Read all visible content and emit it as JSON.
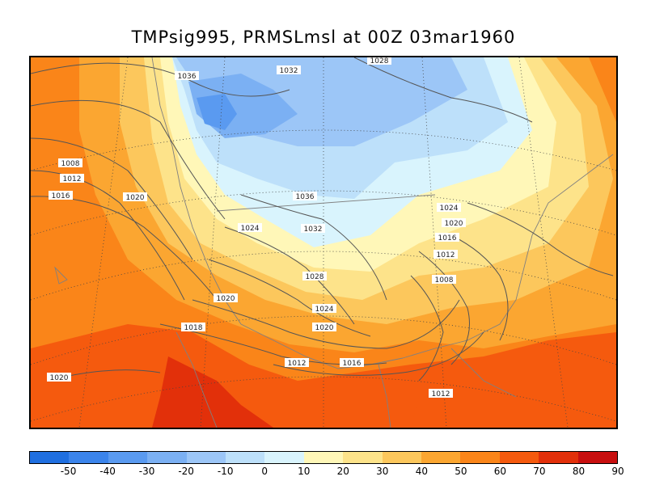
{
  "title": "TMPsig995, PRMSLmsl at 00Z  03mar1960",
  "colors": {
    "scale": [
      "#1f6fe0",
      "#3b84eb",
      "#5a9af0",
      "#7bb0f3",
      "#9cc6f7",
      "#bde0fa",
      "#d9f4fd",
      "#fff7b8",
      "#fde38a",
      "#fcc75c",
      "#fba631",
      "#fa8519",
      "#f55a0e",
      "#e2300a",
      "#c80f0f"
    ],
    "ocean_warm": "#fa8519",
    "contour": "#555555",
    "coast": "#808080"
  },
  "colorbar": {
    "tick_labels": [
      "-50",
      "-40",
      "-30",
      "-20",
      "-10",
      "0",
      "10",
      "20",
      "30",
      "40",
      "50",
      "60",
      "70",
      "80",
      "90"
    ]
  },
  "isobar_labels": [
    "1028",
    "1036",
    "1032",
    "1008",
    "1012",
    "1016",
    "1020",
    "1036",
    "1024",
    "1032",
    "1024",
    "1020",
    "1016",
    "1012",
    "1028",
    "1008",
    "1020",
    "1024",
    "1018",
    "1020",
    "1012",
    "1016",
    "1020",
    "1012"
  ]
}
